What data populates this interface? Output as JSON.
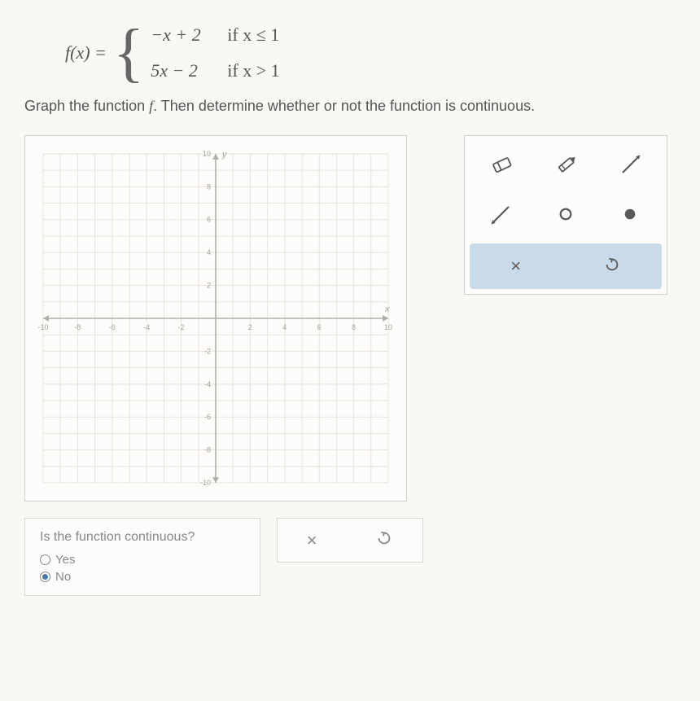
{
  "formula": {
    "lhs": "f(x) =",
    "piece1_expr": "−x + 2",
    "piece1_cond": "if x ≤ 1",
    "piece2_expr": "5x − 2",
    "piece2_cond": "if x > 1"
  },
  "prompt": {
    "pre": "Graph the function ",
    "fn": "f",
    "post": ". Then determine whether or not the function is continuous."
  },
  "graph": {
    "xmin": -10,
    "xmax": 10,
    "ymin": -10,
    "ymax": 10,
    "xstep": 2,
    "ystep": 2,
    "xlabel": "x",
    "ylabel": "y",
    "grid_color": "#e6e3df",
    "axis_color": "#b0aea8",
    "bg": "#fdfcfa",
    "label_values": [
      -10,
      -8,
      -6,
      -4,
      -2,
      2,
      4,
      6,
      8,
      10
    ]
  },
  "question": {
    "text": "Is the function continuous?",
    "opt_yes": "Yes",
    "opt_no": "No",
    "selected": "no"
  },
  "actions": {
    "close": "×",
    "undo": "↶"
  },
  "tools": {
    "row1": [
      "eraser-icon",
      "pencil-icon",
      "ray-icon"
    ],
    "row2": [
      "segment-icon",
      "open-dot-icon",
      "closed-dot-icon"
    ],
    "bar": [
      "close-icon",
      "undo-icon"
    ]
  },
  "colors": {
    "icon_stroke": "#5a5a5a",
    "accent": "#4a7ba8",
    "bar_bg": "#c9dbe8"
  }
}
